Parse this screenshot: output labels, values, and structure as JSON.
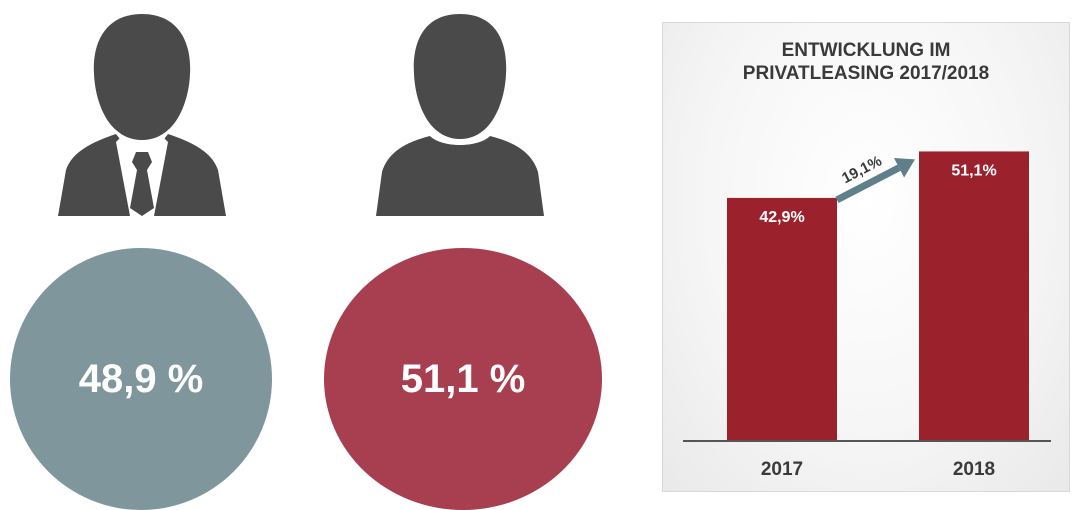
{
  "colors": {
    "business": "#7f969d",
    "private": "#a83f50",
    "icon": "#4a4a4a",
    "bar": "#9b222d",
    "arrow": "#5f7f8b",
    "axis": "#555555",
    "text_dark": "#3a3a3a"
  },
  "icons": {
    "business": "businessman-icon",
    "private": "private-person-icon"
  },
  "circles": {
    "business": {
      "label": "48,9 %",
      "value": 48.9
    },
    "private": {
      "label": "51,1 %",
      "value": 51.1
    }
  },
  "chart_data": {
    "type": "bar",
    "title_line1": "ENTWICKLUNG IM",
    "title_line2": "PRIVATLEASING 2017/2018",
    "categories": [
      "2017",
      "2018"
    ],
    "values": [
      42.9,
      51.1
    ],
    "value_labels": [
      "42,9%",
      "51,1%"
    ],
    "growth_label": "19,1%",
    "ylim": [
      0,
      60
    ],
    "grid": false,
    "legend": "none"
  }
}
